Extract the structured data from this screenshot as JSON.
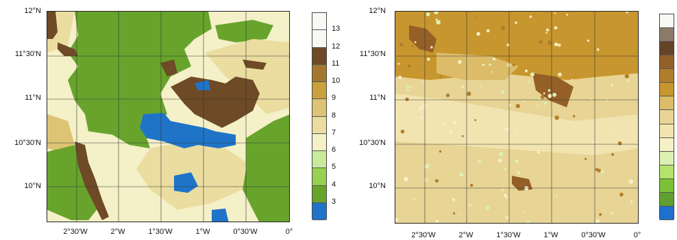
{
  "colors": {
    "3": "#1f74c8",
    "4": "#68a42c",
    "5": "#98d050",
    "6": "#c8ea9c",
    "7": "#f4f0c8",
    "8": "#ebdca0",
    "9": "#dcc474",
    "10": "#c8a03c",
    "11": "#a4782c",
    "12": "#6e4a26",
    "13": "#f8f8f4",
    "rc2": "#8c7a6a",
    "rc3": "#644426",
    "rc4": "#946028",
    "rc5": "#b07e2c",
    "rc6": "#c8962e",
    "rc7": "#dcbc68",
    "rc8": "#e8d494",
    "rc9": "#f2e4b0",
    "rc10": "#f6f0c6",
    "rc11": "#dcf0b4",
    "rc12": "#b4e26c",
    "rc13": "#7cc038",
    "rc14": "#60a030",
    "rc15": "#1d70cc"
  },
  "left_map": {
    "y_labels": [
      "12°N",
      "11°30'N",
      "11°N",
      "10°30'N",
      "10°N"
    ],
    "x_labels": [
      "2°30'W",
      "2°W",
      "1°30'W",
      "1°W",
      "0°30'W",
      "0°"
    ],
    "colorbar_labels": [
      "13",
      "12",
      "11",
      "10",
      "9",
      "8",
      "7",
      "6",
      "5",
      "4",
      "3"
    ]
  },
  "right_map": {
    "y_labels": [
      "12°N",
      "11°30'N",
      "11°N",
      "10°30'N",
      "10°N"
    ],
    "x_labels": [
      "2°30'W",
      "2°W",
      "1°30'W",
      "1°W",
      "0°30'W",
      "0°"
    ]
  }
}
